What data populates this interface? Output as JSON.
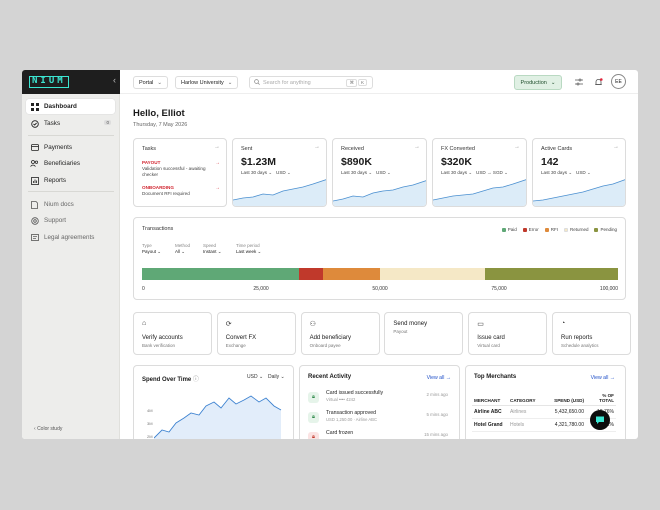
{
  "brand": {
    "logo_text": "NIUM",
    "accent": "#3ce6d2"
  },
  "sidebar": {
    "collapse_glyph": "‹",
    "items": [
      {
        "label": "Dashboard",
        "icon": "grid-icon",
        "active": true
      },
      {
        "label": "Tasks",
        "icon": "check-circle-icon",
        "badge": "0"
      },
      {
        "label": "Payments",
        "icon": "card-icon"
      },
      {
        "label": "Beneficiaries",
        "icon": "users-icon"
      },
      {
        "label": "Reports",
        "icon": "chart-icon"
      },
      {
        "label": "Nium docs",
        "icon": "doc-icon"
      },
      {
        "label": "Support",
        "icon": "help-icon"
      },
      {
        "label": "Legal agreements",
        "icon": "legal-icon"
      }
    ],
    "footer": "Color study"
  },
  "topbar": {
    "portal": "Portal",
    "org": "Harlow University",
    "search_placeholder": "Search for anything",
    "kbd1": "⌘",
    "kbd2": "K",
    "environment": "Production"
  },
  "header": {
    "greeting": "Hello, Elliot",
    "date": "Thursday, 7 May 2026"
  },
  "tasks_card": {
    "title": "Tasks",
    "items": [
      {
        "status": "PAYOUT",
        "desc": "Validation successful - awaiting checker"
      },
      {
        "status": "ONBOARDING",
        "desc": "Document RFI required"
      }
    ]
  },
  "stats": [
    {
      "title": "Sent",
      "value": "$1.23M",
      "period": "Last 30 days",
      "unit": "USD"
    },
    {
      "title": "Received",
      "value": "$890K",
      "period": "Last 30 days",
      "unit": "USD"
    },
    {
      "title": "FX Converted",
      "value": "$320K",
      "period": "Last 30 days",
      "unit": "USD → SGD"
    },
    {
      "title": "Active Cards",
      "value": "142",
      "period": "Last 30 days",
      "unit": "USD"
    }
  ],
  "transactions": {
    "title": "Transactions",
    "legend": [
      {
        "label": "Paid",
        "color": "#5fa876"
      },
      {
        "label": "Error",
        "color": "#c0392b"
      },
      {
        "label": "RFI",
        "color": "#de8a3b"
      },
      {
        "label": "Returned",
        "color": "#f5e8c6"
      },
      {
        "label": "Pending",
        "color": "#8a9440"
      }
    ],
    "filters": [
      {
        "label": "Type",
        "value": "Payout"
      },
      {
        "label": "Method",
        "value": "All"
      },
      {
        "label": "Speed",
        "value": "Instant"
      },
      {
        "label": "Time period",
        "value": "Last week"
      }
    ],
    "ticks": [
      "0",
      "25,000",
      "50,000",
      "75,000",
      "100,000"
    ]
  },
  "chart_data": {
    "type": "bar",
    "orientation": "horizontal-stacked",
    "title": "Transactions",
    "categories": [
      "Paid",
      "Error",
      "RFI",
      "Returned",
      "Pending"
    ],
    "values": [
      33000,
      5000,
      12000,
      22000,
      28000
    ],
    "xlim": [
      0,
      100000
    ]
  },
  "actions": [
    {
      "title": "Verify accounts",
      "sub": "Bank verification",
      "icon": "bank-icon",
      "glyph": "⌂"
    },
    {
      "title": "Convert FX",
      "sub": "Exchange",
      "icon": "refresh-icon",
      "glyph": "⟳"
    },
    {
      "title": "Add beneficiary",
      "sub": "Onboard payee",
      "icon": "user-plus-icon",
      "glyph": "⚇"
    },
    {
      "title": "Send money",
      "sub": "Payout",
      "icon": "send-icon",
      "glyph": ""
    },
    {
      "title": "Issue card",
      "sub": "Virtual card",
      "icon": "card-icon",
      "glyph": "▭"
    },
    {
      "title": "Run reports",
      "sub": "Schedule analytics",
      "icon": "report-icon",
      "glyph": "◔"
    }
  ],
  "spend": {
    "title": "Spend Over Time",
    "info": "ⓘ",
    "currency": "USD",
    "interval": "Daily",
    "y_ticks": [
      "4M",
      "3M",
      "2M",
      "1M"
    ]
  },
  "activity": {
    "title": "Recent Activity",
    "view_all": "View all →",
    "items": [
      {
        "title": "Card issued successfully",
        "sub": "Virtual •••• 4242",
        "when": "2 mins ago",
        "tone": "ok"
      },
      {
        "title": "Transaction approved",
        "sub": "USD 1,250.00 · Airline ABC",
        "when": "5 mins ago",
        "tone": "ok"
      },
      {
        "title": "Card frozen",
        "sub": "",
        "when": "15 mins ago",
        "tone": "warn"
      }
    ]
  },
  "merchants": {
    "title": "Top Merchants",
    "view_all": "View all →",
    "headers": [
      "MERCHANT",
      "CATEGORY",
      "SPEND (USD)",
      "% OF TOTAL"
    ],
    "rows": [
      [
        "Airline ABC",
        "Airlines",
        "5,432,650.00",
        "18.76%"
      ],
      [
        "Hotel Grand",
        "Hotels",
        "4,321,780.00",
        "14.92%"
      ]
    ]
  }
}
